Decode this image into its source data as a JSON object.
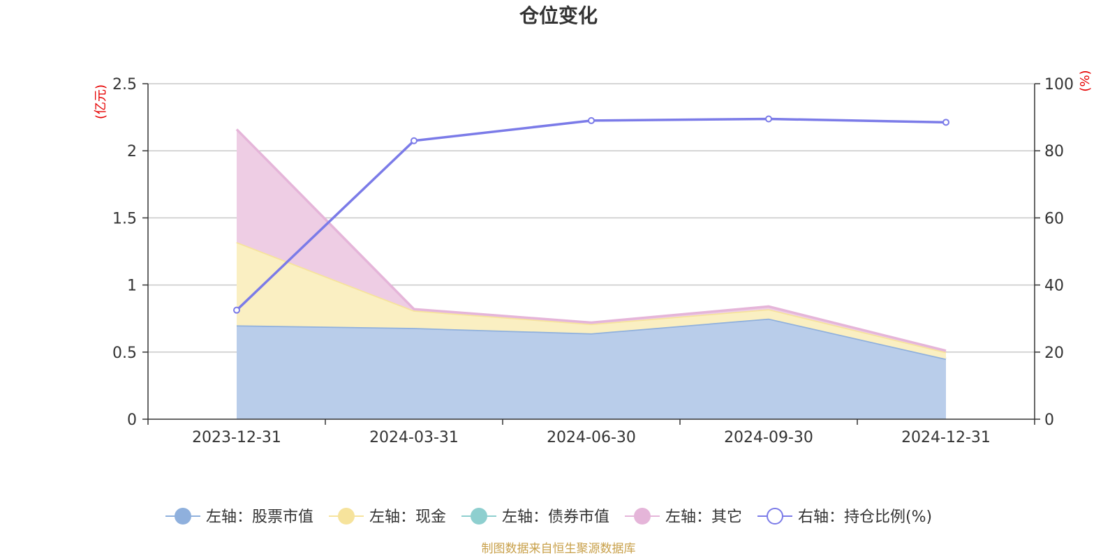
{
  "chart_data": {
    "type": "area",
    "title": "仓位变化",
    "left_axis_label": "(亿元)",
    "right_axis_label": "(%)",
    "categories": [
      "2023-12-31",
      "2024-03-31",
      "2024-06-30",
      "2024-09-30",
      "2024-12-31"
    ],
    "left_ylim": [
      0,
      2.5
    ],
    "left_ticks": [
      "0",
      "0.5",
      "1",
      "1.5",
      "2",
      "2.5"
    ],
    "right_ylim": [
      0,
      100
    ],
    "right_ticks": [
      "0",
      "20",
      "40",
      "60",
      "80",
      "100"
    ],
    "grid": true,
    "legend_position": "bottom",
    "series": [
      {
        "name": "左轴：股票市值",
        "axis": "left",
        "kind": "stacked-area",
        "color": "#8fb0dd",
        "fill": "#b9cdea",
        "values": [
          0.7,
          0.68,
          0.64,
          0.75,
          0.45
        ]
      },
      {
        "name": "左轴：现金",
        "axis": "left",
        "kind": "stacked-area",
        "color": "#f6e39c",
        "fill": "#faefc2",
        "values": [
          0.62,
          0.13,
          0.07,
          0.07,
          0.05
        ]
      },
      {
        "name": "左轴：债券市值",
        "axis": "left",
        "kind": "stacked-area",
        "color": "#8ecfcf",
        "fill": "#bfe4e4",
        "values": [
          0,
          0,
          0,
          0,
          0
        ]
      },
      {
        "name": "左轴：其它",
        "axis": "left",
        "kind": "stacked-area",
        "color": "#e5b5d9",
        "fill": "#eecde4",
        "values": [
          0.84,
          0.01,
          0.01,
          0.02,
          0.01
        ]
      },
      {
        "name": "右轴：持仓比例(%)",
        "axis": "right",
        "kind": "line",
        "color": "#7b7be8",
        "fill": "#ffffff",
        "values": [
          32.5,
          83.0,
          89.0,
          89.5,
          88.5
        ]
      }
    ],
    "source_note": "制图数据来自恒生聚源数据库"
  }
}
